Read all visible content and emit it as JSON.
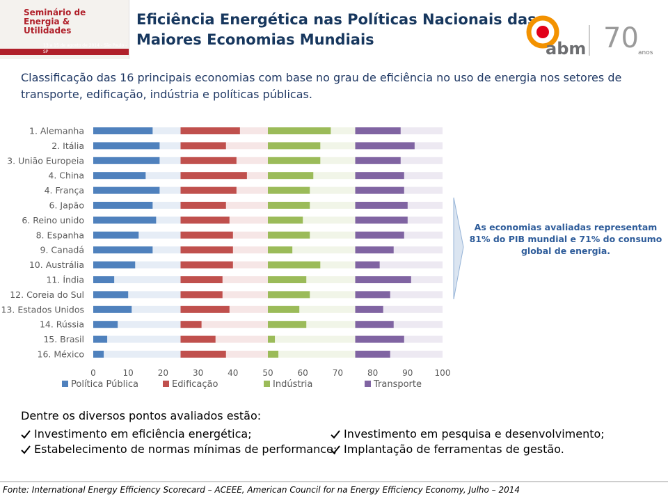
{
  "header": {
    "title": "Eficiência Energética nas Políticas Nacionais das Maiores Economias Mundiais",
    "event_logo": {
      "name": "Seminário de Energia & Utilidades",
      "date": "13 a 15 de agosto de 2014 - São Paulo - SP"
    },
    "org_logo": {
      "name": "abm",
      "anniversary": "anos"
    }
  },
  "intro": "Classificação das 16 principais economias com base no grau de eficiência no uso de energia nos setores de transporte, edificação, indústria e políticas públicas.",
  "chart_data": {
    "type": "bar",
    "orientation": "horizontal",
    "layout": "sectioned",
    "categories": [
      "1. Alemanha",
      "2. Itália",
      "3. União Europeia",
      "4. China",
      "4. França",
      "6. Japão",
      "6. Reino unido",
      "8. Espanha",
      "9. Canadá",
      "10. Austrália",
      "11. Índia",
      "12. Coreia do Sul",
      "13. Estados Unidos",
      "14. Rússia",
      "15. Brasil",
      "16. México"
    ],
    "series": [
      {
        "name": "Política Pública",
        "color": "#4f81bd",
        "values": [
          17,
          19,
          19,
          15,
          19,
          17,
          18,
          13,
          17,
          12,
          6,
          10,
          11,
          7,
          4,
          3
        ]
      },
      {
        "name": "Edificação",
        "color": "#c0504d",
        "values": [
          17,
          13,
          16,
          19,
          16,
          13,
          14,
          15,
          15,
          15,
          12,
          12,
          14,
          6,
          10,
          13
        ]
      },
      {
        "name": "Indústria",
        "color": "#9bbb59",
        "values": [
          18,
          15,
          15,
          13,
          12,
          12,
          10,
          12,
          7,
          15,
          11,
          12,
          9,
          11,
          2,
          3
        ]
      },
      {
        "name": "Transporte",
        "color": "#8064a2",
        "values": [
          13,
          17,
          13,
          14,
          14,
          15,
          15,
          14,
          11,
          7,
          16,
          10,
          8,
          11,
          14,
          10
        ]
      }
    ],
    "xlim": [
      0,
      100
    ],
    "xticks": [
      0,
      10,
      20,
      30,
      40,
      50,
      60,
      70,
      80,
      90,
      100
    ],
    "legend": "bottom"
  },
  "callout": "As economias avaliadas representam 81% do PIB mundial e 71% do consumo global de energia.",
  "points": {
    "heading": "Dentre os diversos pontos avaliados estão:",
    "items": [
      "Investimento em eficiência energética;",
      "Estabelecimento de normas mínimas de performance;",
      "Investimento em pesquisa e desenvolvimento;",
      "Implantação de ferramentas de gestão."
    ]
  },
  "source": "Fonte: International Energy Efficiency Scorecard – ACEEE, American Council for na Energy Efficiency Economy, Julho – 2014"
}
